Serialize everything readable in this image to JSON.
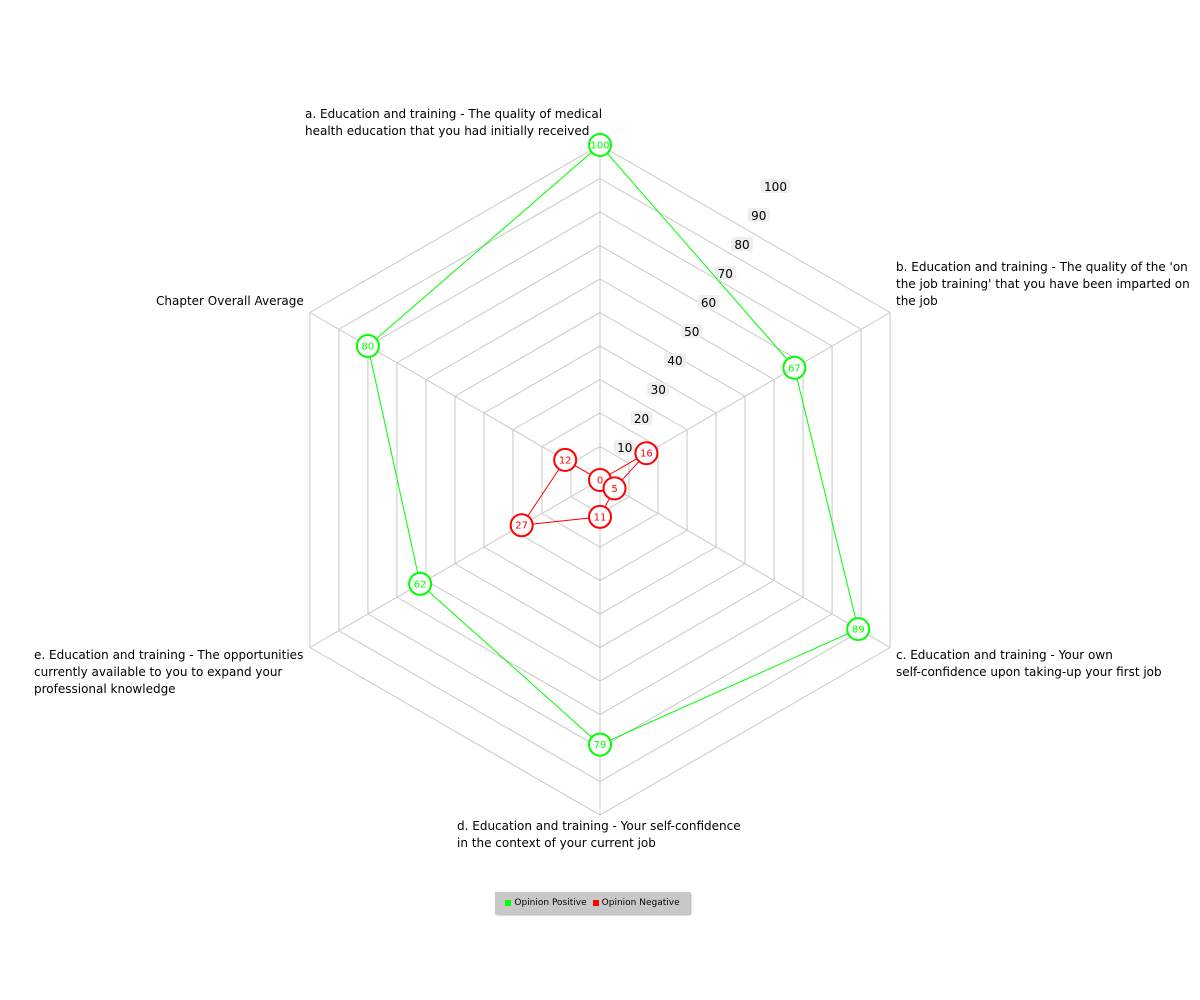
{
  "chart_data": {
    "type": "radar",
    "axes": [
      "a. Education and training - The quality of medical\nhealth education that you had initially received",
      "b. Education and training - The quality of the 'on\nthe job training' that you have been imparted on\nthe job",
      "c. Education and training - Your own\nself-confidence upon taking-up your first job",
      "d. Education and training - Your self-confidence\nin the context of your current job",
      "e. Education and training - The opportunities\ncurrently available to you to expand your\nprofessional knowledge",
      "Chapter Overall Average"
    ],
    "r_ticks": [
      10,
      20,
      30,
      40,
      50,
      60,
      70,
      80,
      90,
      100
    ],
    "rlim": [
      0,
      100
    ],
    "grid": true,
    "legend_position": "bottom",
    "series": [
      {
        "name": "Opinion Positive",
        "color": "#00ff00",
        "values": [
          100,
          67,
          89,
          79,
          62,
          80
        ]
      },
      {
        "name": "Opinion Negative",
        "color": "#ff0000",
        "values": [
          0,
          16,
          5,
          11,
          27,
          12
        ]
      }
    ]
  }
}
